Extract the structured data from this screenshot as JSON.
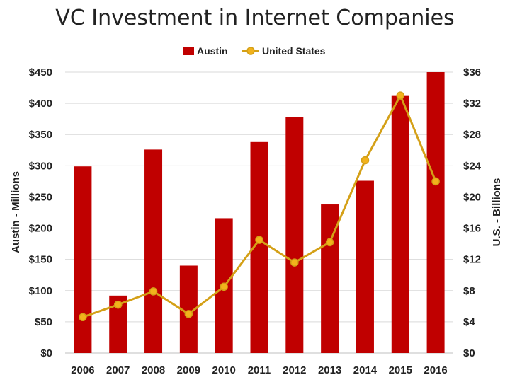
{
  "chart_data": {
    "type": "bar",
    "title": "VC Investment in Internet Companies",
    "categories": [
      "2006",
      "2007",
      "2008",
      "2009",
      "2010",
      "2011",
      "2012",
      "2013",
      "2014",
      "2015",
      "2016"
    ],
    "series": [
      {
        "name": "Austin",
        "type": "bar",
        "axis": "left",
        "color": "#c00000",
        "values": [
          299,
          92,
          326,
          140,
          216,
          338,
          378,
          238,
          276,
          413,
          450
        ]
      },
      {
        "name": "United States",
        "type": "line",
        "axis": "right",
        "color": "#d4a017",
        "marker_color": "#f2b21c",
        "values": [
          4.6,
          6.2,
          7.9,
          5.0,
          8.5,
          14.5,
          11.6,
          14.2,
          24.7,
          33.0,
          22.0
        ]
      }
    ],
    "y_left": {
      "label": "Austin - Millions",
      "range": [
        0,
        450
      ],
      "ticks": [
        0,
        50,
        100,
        150,
        200,
        250,
        300,
        350,
        400,
        450
      ],
      "tick_labels": [
        "$0",
        "$50",
        "$100",
        "$150",
        "$200",
        "$250",
        "$300",
        "$350",
        "$400",
        "$450"
      ]
    },
    "y_right": {
      "label": "U.S. - Billions",
      "range": [
        0,
        36
      ],
      "ticks": [
        0,
        4,
        8,
        12,
        16,
        20,
        24,
        28,
        32,
        36
      ],
      "tick_labels": [
        "$0",
        "$4",
        "$8",
        "$12",
        "$16",
        "$20",
        "$24",
        "$28",
        "$32",
        "$36"
      ]
    },
    "grid": true,
    "legend_position": "top-center"
  }
}
